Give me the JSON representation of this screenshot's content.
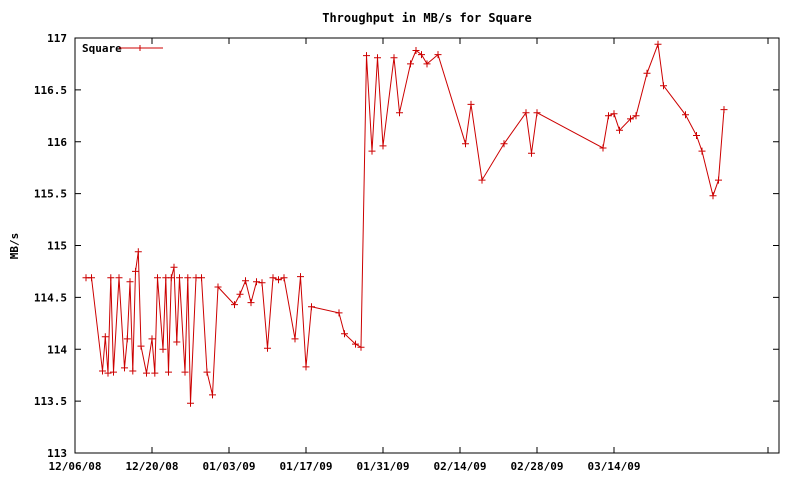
{
  "chart_data": {
    "type": "line",
    "title": "Throughput in MB/s for Square",
    "xlabel": "",
    "ylabel": "MB/s",
    "ylim": [
      113,
      117
    ],
    "xlim": [
      "12/06/08",
      "04/13/09"
    ],
    "yticks": [
      "113",
      "113.5",
      "114",
      "114.5",
      "115",
      "115.5",
      "116",
      "116.5",
      "117"
    ],
    "xticks": [
      "12/06/08",
      "12/20/08",
      "01/03/09",
      "01/17/09",
      "01/31/09",
      "02/14/09",
      "02/28/09",
      "03/14/09"
    ],
    "grid": false,
    "legend_position": "top-left",
    "series": [
      {
        "name": "Square",
        "color": "#cc0000",
        "marker": "plus",
        "points": [
          [
            "12/08/08",
            114.69
          ],
          [
            "12/09/08",
            114.69
          ],
          [
            "12/11/08",
            113.79
          ],
          [
            "12/11/08 12:00",
            114.12
          ],
          [
            "12/12/08",
            113.77
          ],
          [
            "12/12/08 12:00",
            114.69
          ],
          [
            "12/13/08",
            113.78
          ],
          [
            "12/14/08",
            114.69
          ],
          [
            "12/15/08",
            113.82
          ],
          [
            "12/15/08 12:00",
            114.1
          ],
          [
            "12/16/08",
            114.65
          ],
          [
            "12/16/08 12:00",
            113.79
          ],
          [
            "12/17/08",
            114.75
          ],
          [
            "12/17/08 12:00",
            114.94
          ],
          [
            "12/18/08",
            114.03
          ],
          [
            "12/19/08",
            113.77
          ],
          [
            "12/20/08",
            114.1
          ],
          [
            "12/20/08 12:00",
            113.77
          ],
          [
            "12/21/08",
            114.69
          ],
          [
            "12/22/08",
            114.0
          ],
          [
            "12/22/08 12:00",
            114.69
          ],
          [
            "12/23/08",
            113.78
          ],
          [
            "12/23/08 12:00",
            114.69
          ],
          [
            "12/24/08",
            114.79
          ],
          [
            "12/24/08 12:00",
            114.07
          ],
          [
            "12/25/08",
            114.69
          ],
          [
            "12/26/08",
            113.78
          ],
          [
            "12/26/08 12:00",
            114.69
          ],
          [
            "12/27/08",
            113.48
          ],
          [
            "12/28/08",
            114.69
          ],
          [
            "12/29/08",
            114.69
          ],
          [
            "12/30/08",
            113.78
          ],
          [
            "12/31/08",
            113.56
          ],
          [
            "01/01/09",
            114.6
          ],
          [
            "01/04/09",
            114.43
          ],
          [
            "01/05/09",
            114.53
          ],
          [
            "01/06/09",
            114.66
          ],
          [
            "01/07/09",
            114.45
          ],
          [
            "01/08/09",
            114.65
          ],
          [
            "01/09/09",
            114.64
          ],
          [
            "01/10/09",
            114.01
          ],
          [
            "01/11/09",
            114.69
          ],
          [
            "01/12/09",
            114.67
          ],
          [
            "01/13/09",
            114.69
          ],
          [
            "01/15/09",
            114.1
          ],
          [
            "01/16/09",
            114.7
          ],
          [
            "01/17/09",
            113.83
          ],
          [
            "01/18/09",
            114.41
          ],
          [
            "01/23/09",
            114.35
          ],
          [
            "01/24/09",
            114.15
          ],
          [
            "01/26/09",
            114.05
          ],
          [
            "01/27/09",
            114.02
          ],
          [
            "01/28/09",
            116.83
          ],
          [
            "01/29/09",
            115.91
          ],
          [
            "01/30/09",
            116.81
          ],
          [
            "01/31/09",
            115.96
          ],
          [
            "02/02/09",
            116.81
          ],
          [
            "02/03/09",
            116.28
          ],
          [
            "02/05/09",
            116.75
          ],
          [
            "02/06/09",
            116.88
          ],
          [
            "02/07/09",
            116.84
          ],
          [
            "02/08/09",
            116.75
          ],
          [
            "02/10/09",
            116.84
          ],
          [
            "02/15/09",
            115.98
          ],
          [
            "02/16/09",
            116.36
          ],
          [
            "02/18/09",
            115.63
          ],
          [
            "02/22/09",
            115.98
          ],
          [
            "02/26/09",
            116.28
          ],
          [
            "02/27/09",
            115.89
          ],
          [
            "02/28/09",
            116.28
          ],
          [
            "03/12/09",
            115.94
          ],
          [
            "03/13/09",
            116.25
          ],
          [
            "03/14/09",
            116.27
          ],
          [
            "03/15/09",
            116.11
          ],
          [
            "03/17/09",
            116.22
          ],
          [
            "03/18/09",
            116.25
          ],
          [
            "03/20/09",
            116.66
          ],
          [
            "03/22/09",
            116.94
          ],
          [
            "03/23/09",
            116.54
          ],
          [
            "03/27/09",
            116.26
          ],
          [
            "03/29/09",
            116.06
          ],
          [
            "03/30/09",
            115.91
          ],
          [
            "04/01/09",
            115.48
          ],
          [
            "04/02/09",
            115.63
          ],
          [
            "04/03/09",
            116.31
          ]
        ]
      }
    ]
  }
}
